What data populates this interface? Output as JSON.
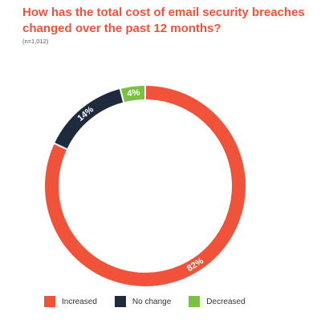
{
  "chart_data": {
    "type": "pie",
    "title": "How has the total cost of email security breaches changed over the past 12 months?",
    "subtitle": "(n=1,012)",
    "categories": [
      "Increased",
      "No change",
      "Decreased"
    ],
    "values": [
      82,
      14,
      4
    ],
    "labels": [
      "82%",
      "14%",
      "4%"
    ],
    "colors": [
      "#f0533a",
      "#1f2b3d",
      "#7ac143"
    ],
    "legend_placement": "bottom"
  }
}
